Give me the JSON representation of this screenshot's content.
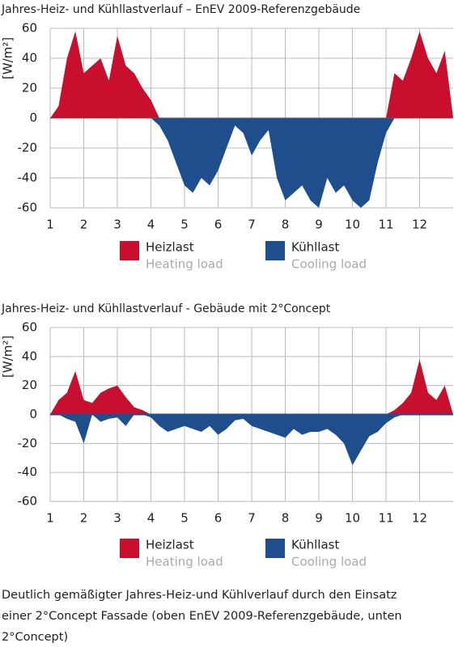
{
  "chart_data": [
    {
      "type": "area",
      "title": "Jahres-Heiz- und Kühllastverlauf – EnEV 2009-Referenzgebäude",
      "ylabel": "[W/m²]",
      "x": [
        1,
        1.25,
        1.5,
        1.75,
        2,
        2.25,
        2.5,
        2.75,
        3,
        3.25,
        3.5,
        3.75,
        4,
        4.25,
        4.5,
        4.75,
        5,
        5.25,
        5.5,
        5.75,
        6,
        6.25,
        6.5,
        6.75,
        7,
        7.25,
        7.5,
        7.75,
        8,
        8.25,
        8.5,
        8.75,
        9,
        9.25,
        9.5,
        9.75,
        10,
        10.25,
        10.5,
        10.75,
        11,
        11.25,
        11.5,
        11.75,
        12,
        12.25,
        12.5,
        12.75,
        13
      ],
      "series": [
        {
          "name": "Heizlast",
          "name_en": "Heating load",
          "color": "#c8102e",
          "values": [
            0,
            8,
            40,
            58,
            30,
            35,
            40,
            25,
            55,
            35,
            30,
            20,
            12,
            0,
            0,
            0,
            0,
            0,
            0,
            0,
            0,
            0,
            0,
            0,
            0,
            0,
            0,
            0,
            0,
            0,
            0,
            0,
            0,
            0,
            0,
            0,
            0,
            0,
            0,
            0,
            0,
            30,
            25,
            40,
            58,
            40,
            30,
            45,
            0
          ]
        },
        {
          "name": "Kühllast",
          "name_en": "Cooling load",
          "color": "#1f4e8c",
          "values": [
            0,
            0,
            0,
            0,
            0,
            0,
            0,
            0,
            0,
            0,
            0,
            0,
            0,
            -5,
            -15,
            -30,
            -45,
            -50,
            -40,
            -45,
            -35,
            -20,
            -5,
            -10,
            -25,
            -15,
            -8,
            -40,
            -55,
            -50,
            -45,
            -55,
            -60,
            -40,
            -50,
            -45,
            -55,
            -60,
            -55,
            -30,
            -10,
            0,
            0,
            0,
            0,
            0,
            0,
            0,
            0
          ]
        }
      ],
      "xlim": [
        1,
        13
      ],
      "xticks": [
        1,
        2,
        3,
        4,
        5,
        6,
        7,
        8,
        9,
        10,
        11,
        12
      ],
      "ylim": [
        -60,
        60
      ],
      "yticks": [
        -60,
        -40,
        -20,
        0,
        20,
        40,
        60
      ],
      "grid": true
    },
    {
      "type": "area",
      "title": "Jahres-Heiz- und Kühllastverlauf - Gebäude mit 2°Concept",
      "ylabel": "[W/m²]",
      "x": [
        1,
        1.25,
        1.5,
        1.75,
        2,
        2.25,
        2.5,
        2.75,
        3,
        3.25,
        3.5,
        3.75,
        4,
        4.25,
        4.5,
        4.75,
        5,
        5.25,
        5.5,
        5.75,
        6,
        6.25,
        6.5,
        6.75,
        7,
        7.25,
        7.5,
        7.75,
        8,
        8.25,
        8.5,
        8.75,
        9,
        9.25,
        9.5,
        9.75,
        10,
        10.25,
        10.5,
        10.75,
        11,
        11.25,
        11.5,
        11.75,
        12,
        12.25,
        12.5,
        12.75,
        13
      ],
      "series": [
        {
          "name": "Heizlast",
          "name_en": "Heating load",
          "color": "#c8102e",
          "values": [
            0,
            10,
            15,
            30,
            10,
            8,
            15,
            18,
            20,
            12,
            5,
            3,
            0,
            0,
            0,
            0,
            0,
            0,
            0,
            0,
            0,
            0,
            0,
            0,
            0,
            0,
            0,
            0,
            0,
            0,
            0,
            0,
            0,
            0,
            0,
            0,
            0,
            0,
            0,
            0,
            0,
            3,
            8,
            15,
            38,
            15,
            10,
            20,
            0
          ]
        },
        {
          "name": "Kühllast",
          "name_en": "Cooling load",
          "color": "#1f4e8c",
          "values": [
            0,
            0,
            -3,
            -5,
            -20,
            0,
            -5,
            -3,
            -2,
            -8,
            0,
            0,
            -2,
            -8,
            -12,
            -10,
            -8,
            -10,
            -12,
            -8,
            -14,
            -10,
            -4,
            -3,
            -8,
            -10,
            -12,
            -14,
            -16,
            -10,
            -14,
            -12,
            -12,
            -10,
            -14,
            -20,
            -35,
            -25,
            -15,
            -12,
            -6,
            -2,
            0,
            0,
            0,
            0,
            0,
            0,
            0
          ]
        }
      ],
      "xlim": [
        1,
        13
      ],
      "xticks": [
        1,
        2,
        3,
        4,
        5,
        6,
        7,
        8,
        9,
        10,
        11,
        12
      ],
      "ylim": [
        -60,
        60
      ],
      "yticks": [
        -60,
        -40,
        -20,
        0,
        20,
        40,
        60
      ],
      "grid": true
    }
  ],
  "caption": [
    "Deutlich gemäßigter Jahres-Heiz-und Kühlverlauf durch den Einsatz",
    "einer 2°Concept Fassade (oben EnEV 2009-Referenzgebäude, unten",
    "2°Concept)"
  ]
}
